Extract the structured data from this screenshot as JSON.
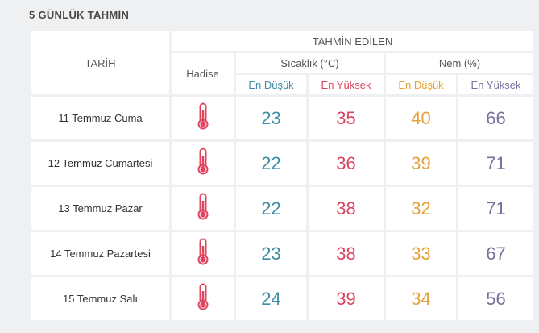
{
  "title": "5 GÜNLÜK TAHMİN",
  "headers": {
    "date": "TARİH",
    "forecast": "TAHMİN EDİLEN",
    "event": "Hadise",
    "temperature": "Sıcaklık (°C)",
    "humidity": "Nem (%)",
    "temp_min": "En Düşük",
    "temp_max": "En Yüksek",
    "hum_min": "En Düşük",
    "hum_max": "En Yüksek"
  },
  "icon": "thermometer-icon",
  "colors": {
    "temp_min": "#3b8ea5",
    "temp_max": "#d9455f",
    "hum_min": "#e5a23b",
    "hum_max": "#7a6e9e"
  },
  "rows": [
    {
      "date": "11 Temmuz Cuma",
      "temp_min": "23",
      "temp_max": "35",
      "hum_min": "40",
      "hum_max": "66"
    },
    {
      "date": "12 Temmuz Cumartesi",
      "temp_min": "22",
      "temp_max": "36",
      "hum_min": "39",
      "hum_max": "71"
    },
    {
      "date": "13 Temmuz Pazar",
      "temp_min": "22",
      "temp_max": "38",
      "hum_min": "32",
      "hum_max": "71"
    },
    {
      "date": "14 Temmuz Pazartesi",
      "temp_min": "23",
      "temp_max": "38",
      "hum_min": "33",
      "hum_max": "67"
    },
    {
      "date": "15 Temmuz Salı",
      "temp_min": "24",
      "temp_max": "39",
      "hum_min": "34",
      "hum_max": "56"
    }
  ]
}
